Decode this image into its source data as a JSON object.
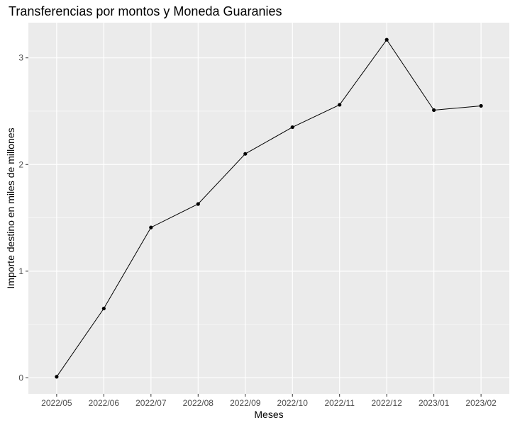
{
  "chart_data": {
    "type": "line",
    "title": "Transferencias por montos y Moneda Guaranies",
    "xlabel": "Meses",
    "ylabel": "Importe destino en miles de millones",
    "categories": [
      "2022/05",
      "2022/06",
      "2022/07",
      "2022/08",
      "2022/09",
      "2022/10",
      "2022/11",
      "2022/12",
      "2023/01",
      "2023/02"
    ],
    "values": [
      0.01,
      0.65,
      1.41,
      1.63,
      2.1,
      2.35,
      2.56,
      3.17,
      2.51,
      2.55
    ],
    "y_ticks": [
      "0",
      "1",
      "2",
      "3"
    ],
    "ylim": [
      -0.15,
      3.33
    ],
    "grid": true,
    "legend": "none",
    "colors": {
      "panel": "#ebebeb",
      "grid_major": "#ffffff",
      "line": "#000000",
      "point": "#000000"
    }
  }
}
